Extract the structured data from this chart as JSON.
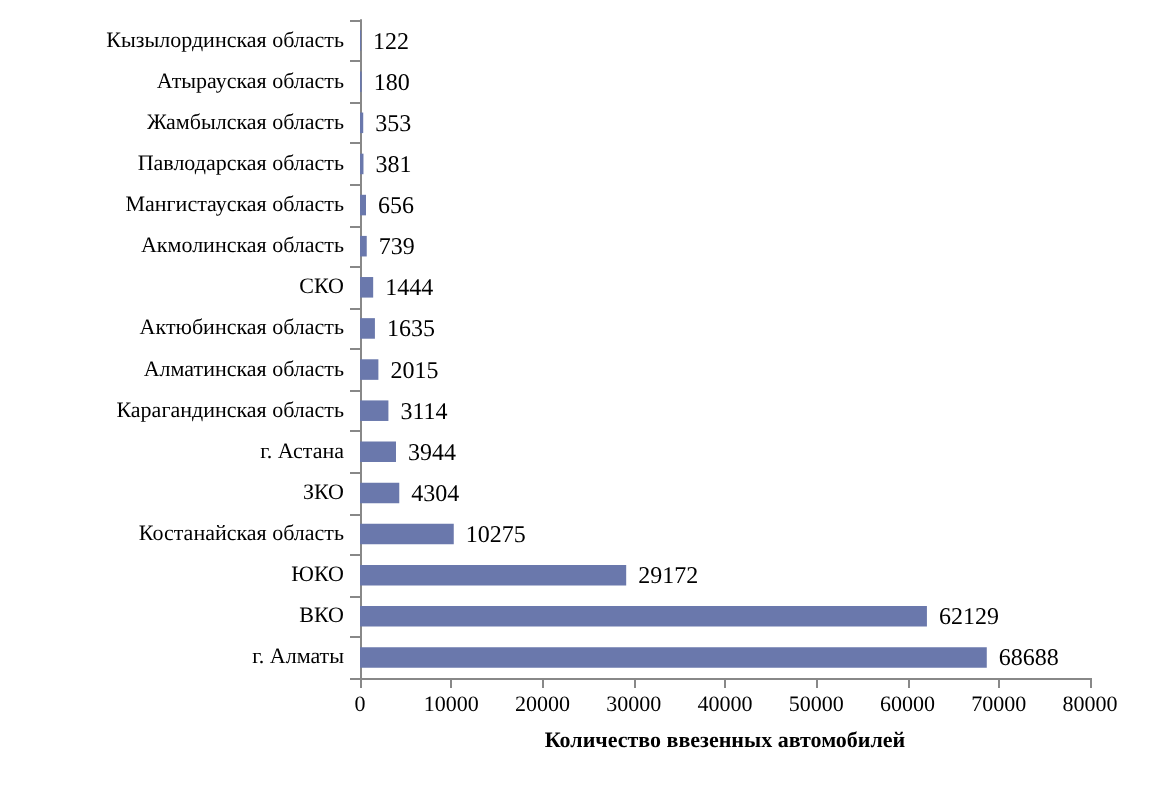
{
  "chart_data": {
    "type": "bar",
    "orientation": "horizontal",
    "xlabel": "Количество ввезенных автомобилей",
    "categories": [
      "Кызылординская область",
      "Атырауская область",
      "Жамбылская область",
      "Павлодарская область",
      "Мангистауская область",
      "Акмолинская область",
      "СКО",
      "Актюбинская область",
      "Алматинская область",
      "Карагандинская область",
      "г. Астана",
      "ЗКО",
      "Костанайская область",
      "ЮКО",
      "ВКО",
      "г. Алматы"
    ],
    "values": [
      122,
      180,
      353,
      381,
      656,
      739,
      1444,
      1635,
      2015,
      3114,
      3944,
      4304,
      10275,
      29172,
      62129,
      68688
    ],
    "color": "#6a78ac",
    "xlim": [
      0,
      80000
    ],
    "xticks": [
      0,
      10000,
      20000,
      30000,
      40000,
      50000,
      60000,
      70000,
      80000
    ],
    "data_labels": true
  }
}
